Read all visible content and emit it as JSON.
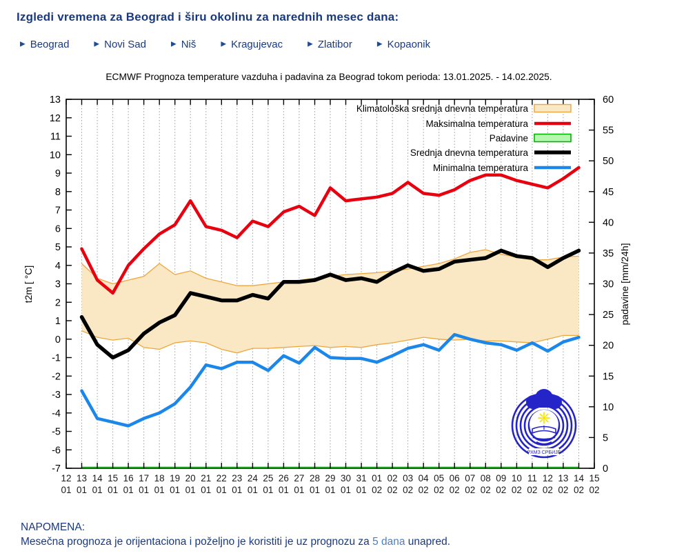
{
  "header": {
    "title": "Izgledi vremena za Beograd i širu okolinu za narednih mesec dana:"
  },
  "nav": {
    "items": [
      {
        "label": "Beograd"
      },
      {
        "label": "Novi Sad"
      },
      {
        "label": "Niš"
      },
      {
        "label": "Kragujevac"
      },
      {
        "label": "Zlatibor"
      },
      {
        "label": "Kopaonik"
      }
    ],
    "arrow_icon": "▶",
    "color": "#19397f"
  },
  "chart_data": {
    "type": "line",
    "title": "ECMWF Prognoza temperature vazduha i padavina za Beograd tokom perioda: 13.01.2025. - 14.02.2025.",
    "ylabel_left": "t2m [ °C]",
    "ylabel_right": "padavine [mm/24h]",
    "ylim_left": [
      -7,
      13
    ],
    "ylim_right": [
      0,
      60
    ],
    "y_tick_step_left": 1,
    "y_tick_step_right": 5,
    "grid": "vertical-dotted",
    "legend_position": "top-right-inside",
    "x_ticks": {
      "days": [
        "12",
        "13",
        "14",
        "15",
        "16",
        "17",
        "18",
        "19",
        "20",
        "21",
        "22",
        "23",
        "24",
        "25",
        "26",
        "27",
        "28",
        "29",
        "30",
        "31",
        "01",
        "02",
        "03",
        "04",
        "05",
        "06",
        "07",
        "08",
        "09",
        "10",
        "11",
        "12",
        "13",
        "14",
        "15"
      ],
      "months": [
        "01",
        "01",
        "01",
        "01",
        "01",
        "01",
        "01",
        "01",
        "01",
        "01",
        "01",
        "01",
        "01",
        "01",
        "01",
        "01",
        "01",
        "01",
        "01",
        "01",
        "02",
        "02",
        "02",
        "02",
        "02",
        "02",
        "02",
        "02",
        "02",
        "02",
        "02",
        "02",
        "02",
        "02",
        "02"
      ]
    },
    "categories": [
      "13.01.",
      "14.01.",
      "15.01.",
      "16.01.",
      "17.01.",
      "18.01.",
      "19.01.",
      "20.01.",
      "21.01.",
      "22.01.",
      "23.01.",
      "24.01.",
      "25.01.",
      "26.01.",
      "27.01.",
      "28.01.",
      "29.01.",
      "30.01.",
      "31.01.",
      "01.02.",
      "02.02.",
      "03.02.",
      "04.02.",
      "05.02.",
      "06.02.",
      "07.02.",
      "08.02.",
      "09.02.",
      "10.02.",
      "11.02.",
      "12.02.",
      "13.02.",
      "14.02."
    ],
    "series": [
      {
        "name": "Klimatološka srednja dnevna temperatura",
        "type": "band",
        "fill": "#fae7c4",
        "stroke": "#eda63c",
        "upper": [
          4.1,
          3.3,
          3.0,
          3.2,
          3.4,
          4.1,
          3.5,
          3.7,
          3.3,
          3.1,
          2.9,
          2.9,
          3.0,
          3.1,
          3.2,
          3.3,
          3.4,
          3.5,
          3.55,
          3.6,
          3.7,
          3.8,
          3.95,
          4.1,
          4.35,
          4.7,
          4.85,
          4.6,
          4.45,
          4.3,
          4.3,
          4.45,
          4.5
        ],
        "lower": [
          0.45,
          0.1,
          -0.05,
          0.05,
          -0.45,
          -0.55,
          -0.2,
          -0.1,
          -0.2,
          -0.55,
          -0.75,
          -0.5,
          -0.5,
          -0.45,
          -0.4,
          -0.35,
          -0.45,
          -0.4,
          -0.45,
          -0.3,
          -0.2,
          -0.05,
          0.1,
          0.0,
          -0.05,
          0.0,
          -0.1,
          -0.1,
          -0.15,
          -0.2,
          0.0,
          0.2,
          0.2
        ]
      },
      {
        "name": "Maksimalna temperatura",
        "type": "line",
        "axis": "left",
        "color": "#e8000f",
        "values": [
          4.9,
          3.2,
          2.5,
          4.0,
          4.9,
          5.7,
          6.2,
          7.5,
          6.1,
          5.9,
          5.5,
          6.4,
          6.1,
          6.9,
          7.2,
          6.7,
          8.2,
          7.5,
          7.6,
          7.7,
          7.9,
          8.5,
          7.9,
          7.8,
          8.1,
          8.6,
          8.9,
          8.9,
          8.6,
          8.4,
          8.2,
          8.7,
          9.3
        ]
      },
      {
        "name": "Padavine",
        "type": "line",
        "axis": "right",
        "color": "#00b400",
        "fill": "#b6f7b0",
        "values": [
          0,
          0,
          0,
          0,
          0,
          0,
          0,
          0,
          0,
          0,
          0,
          0,
          0,
          0,
          0,
          0,
          0,
          0,
          0,
          0,
          0,
          0,
          0,
          0,
          0,
          0,
          0,
          0,
          0,
          0,
          0,
          0,
          0
        ]
      },
      {
        "name": "Srednja dnevna temperatura",
        "type": "line",
        "axis": "left",
        "color": "#000000",
        "values": [
          1.2,
          -0.3,
          -1.0,
          -0.6,
          0.3,
          0.9,
          1.3,
          2.5,
          2.3,
          2.1,
          2.1,
          2.4,
          2.2,
          3.1,
          3.1,
          3.2,
          3.5,
          3.2,
          3.3,
          3.1,
          3.6,
          4.0,
          3.7,
          3.8,
          4.2,
          4.3,
          4.4,
          4.8,
          4.5,
          4.4,
          3.9,
          4.4,
          4.8
        ]
      },
      {
        "name": "Minimalna temperatura",
        "type": "line",
        "axis": "left",
        "color": "#1b87ea",
        "values": [
          -2.8,
          -4.3,
          -4.5,
          -4.7,
          -4.3,
          -4.0,
          -3.5,
          -2.6,
          -1.4,
          -1.6,
          -1.25,
          -1.25,
          -1.7,
          -0.9,
          -1.3,
          -0.45,
          -1.0,
          -1.05,
          -1.05,
          -1.25,
          -0.9,
          -0.5,
          -0.3,
          -0.6,
          0.25,
          0.0,
          -0.2,
          -0.3,
          -0.6,
          -0.2,
          -0.65,
          -0.15,
          0.1
        ]
      }
    ]
  },
  "logo": {
    "label": "РХМЗ СРБИЈЕ",
    "color": "#2424c8",
    "sun_color": "#f7e400"
  },
  "note": {
    "heading": "NAPOMENA:",
    "text_before": "Mesečna prognoza je orijentaciona i poželjno je koristiti je uz prognozu za ",
    "link_text": "5 dana",
    "text_after": " unapred."
  }
}
